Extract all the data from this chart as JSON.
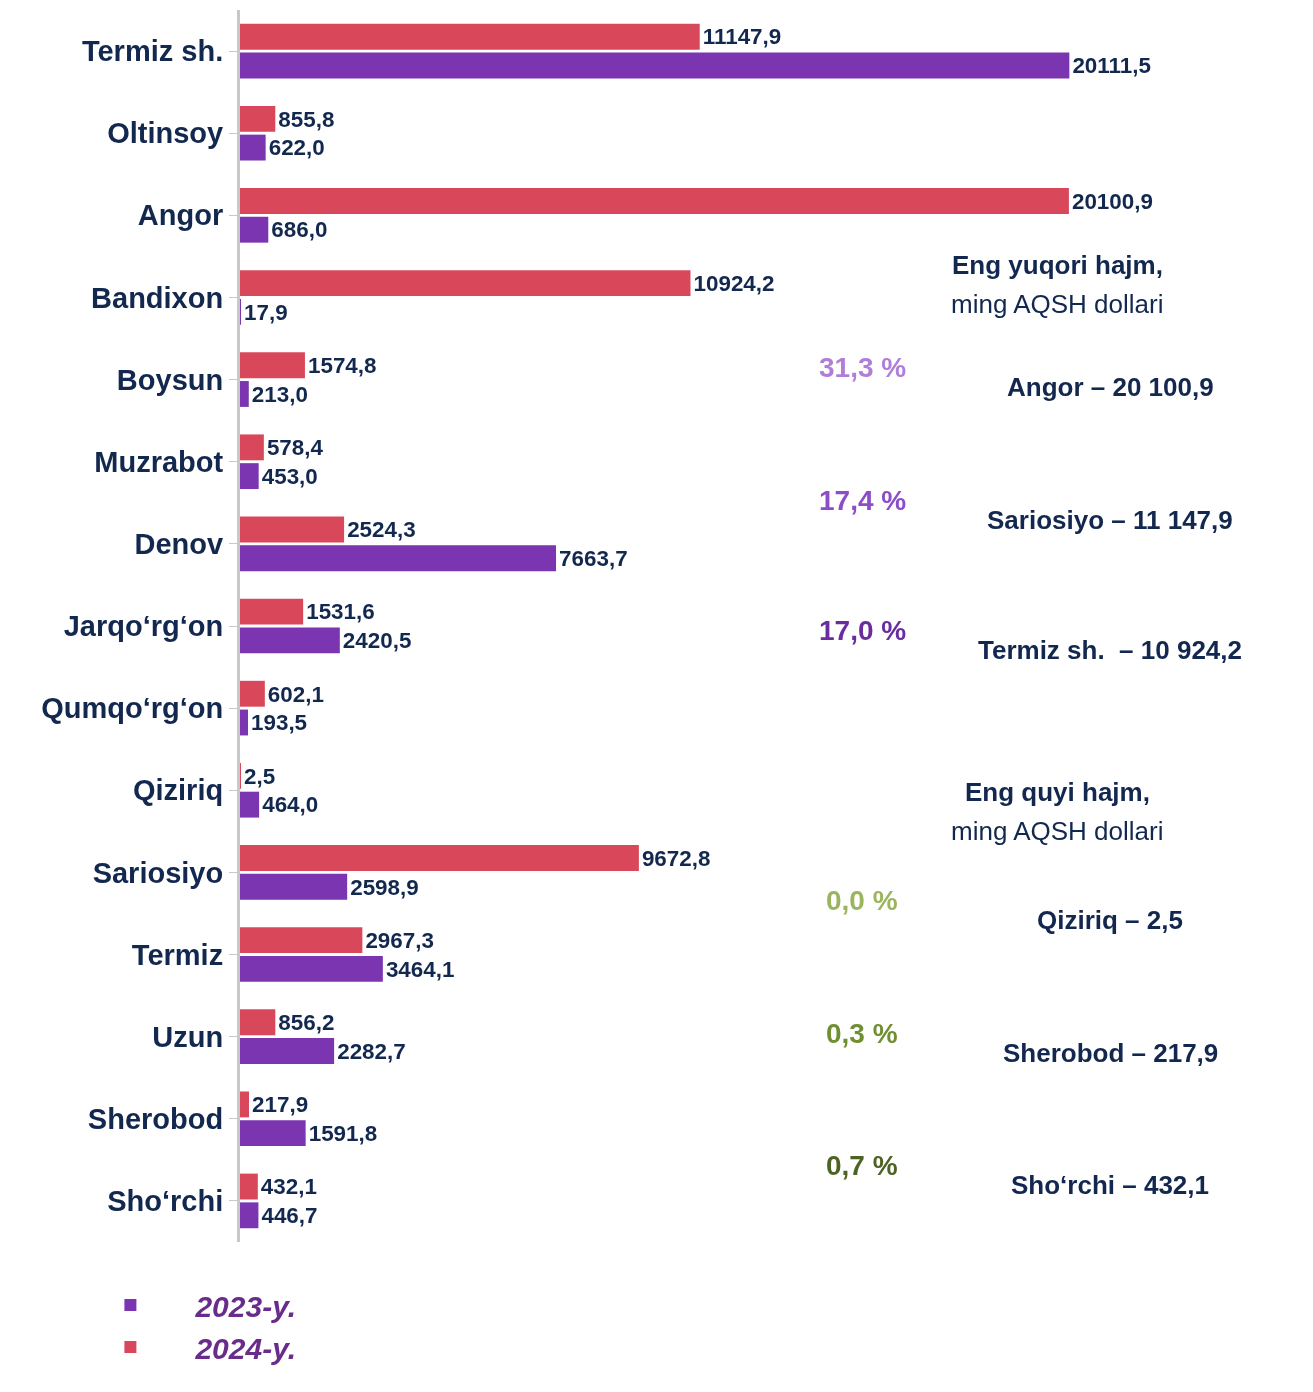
{
  "chart_data": {
    "type": "bar",
    "orientation": "horizontal",
    "categories": [
      "Termiz sh.",
      "Oltinsoy",
      "Angor",
      "Bandixon",
      "Boysun",
      "Muzrabot",
      "Denov",
      "Jarqo‘rg‘on",
      "Qumqo‘rg‘on",
      "Qiziriq",
      "Sariosiyo",
      "Termiz",
      "Uzun",
      "Sherobod",
      "Sho‘rchi"
    ],
    "series": [
      {
        "name": "2024-y.",
        "color": "#d9485a",
        "values": [
          11147.9,
          855.8,
          20100.9,
          10924.2,
          1574.8,
          578.4,
          2524.3,
          1531.6,
          602.1,
          2.5,
          9672.8,
          2967.3,
          856.2,
          217.9,
          432.1
        ],
        "value_labels": [
          "11147,9",
          "855,8",
          "20100,9",
          "10924,2",
          "1574,8",
          "578,4",
          "2524,3",
          "1531,6",
          "602,1",
          "2,5",
          "9672,8",
          "2967,3",
          "856,2",
          "217,9",
          "432,1"
        ]
      },
      {
        "name": "2023-y.",
        "color": "#7b35b0",
        "values": [
          20111.5,
          622.0,
          686.0,
          17.9,
          213.0,
          453.0,
          7663.7,
          2420.5,
          193.5,
          464.0,
          2598.9,
          3464.1,
          2282.7,
          1591.8,
          446.7
        ],
        "value_labels": [
          "20111,5",
          "622,0",
          "686,0",
          "17,9",
          "213,0",
          "453,0",
          "7663,7",
          "2420,5",
          "193,5",
          "464,0",
          "2598,9",
          "3464,1",
          "2282,7",
          "1591,8",
          "446,7"
        ]
      }
    ],
    "tick_labels": "y",
    "legend": "bottom left",
    "annotations": [
      "Eng yuqori hajm,",
      "ming AQSH dollari",
      "31,3 %",
      "Angor – 20 100,9",
      "17,4 %",
      "Sariosiyo – 11 147,9",
      "17,0 %",
      "Termiz sh.  – 10 924,2",
      "Eng quyi hajm,",
      "ming AQSH dollari",
      "0,0 %",
      "Qiziriq – 2,5",
      "0,3 %",
      "Sherobod – 217,9",
      "0,7 %",
      "Sho‘rchi – 432,1"
    ]
  }
}
